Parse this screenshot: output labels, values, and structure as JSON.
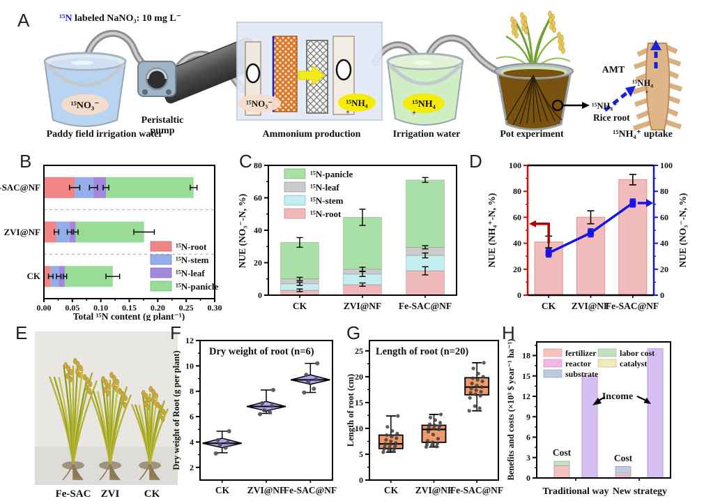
{
  "panel_labels": {
    "A": "A",
    "B": "B",
    "C": "C",
    "D": "D",
    "E": "E",
    "F": "F",
    "G": "G",
    "H": "H"
  },
  "panelA": {
    "header_isotope": "¹⁵N",
    "header_text": " labeled NaNO₃: 10 mg L⁻",
    "bucket1_label": "¹⁵NO₃⁻",
    "caption_bucket1": "Paddy field irrigation water",
    "caption_pump_line1": "Peristaltic",
    "caption_pump_line2": "pump",
    "cell_anode_label": "¹⁵NO₃⁻",
    "cell_cathode_label": "¹⁵NH₄",
    "cell_cathode_charge": "+",
    "caption_cell": "Ammonium production",
    "bucket2_label": "¹⁵NH₄",
    "bucket2_charge": "+",
    "caption_bucket2": "Irrigation water",
    "caption_pot": "Pot experiment",
    "root_amt_label": "AMT",
    "root_nh4_label": "¹⁵NH₄",
    "root_nh4_charge": "+",
    "root_nh4_in_label": "¹⁵NH₄⁺",
    "root_label": "Rice root",
    "caption_root": "¹⁵NH₄⁺ uptake"
  },
  "panelE": {
    "plant_labels": [
      "Fe-SAC",
      "ZVI",
      "CK"
    ]
  },
  "chart_data": [
    {
      "panel": "B",
      "type": "bar",
      "orientation": "horizontal",
      "stacked": true,
      "xlabel": "Total ¹⁵N content (g plant⁻¹)",
      "xlim": [
        0,
        0.3
      ],
      "xticks": [
        "0.00",
        "0.05",
        "0.10",
        "0.15",
        "0.20",
        "0.25",
        "0.30"
      ],
      "categories": [
        "CK",
        "ZVI@NF",
        "Fe-SAC@NF"
      ],
      "series": [
        {
          "name": "¹⁵N-root",
          "color": "#f18585",
          "values": [
            0.012,
            0.022,
            0.054
          ]
        },
        {
          "name": "¹⁵N-stem",
          "color": "#93aee9",
          "values": [
            0.014,
            0.023,
            0.033
          ]
        },
        {
          "name": "¹⁵N-leaf",
          "color": "#a389de",
          "values": [
            0.011,
            0.011,
            0.022
          ]
        },
        {
          "name": "¹⁵N-panicle",
          "color": "#98dc98",
          "values": [
            0.084,
            0.12,
            0.154
          ]
        }
      ],
      "errors": [
        [
          0.004,
          0.004,
          0.003,
          0.012
        ],
        [
          0.004,
          0.004,
          0.004,
          0.018
        ],
        [
          0.009,
          0.007,
          0.005,
          0.006
        ]
      ],
      "legend_position": "inside-right-bottom",
      "grid": "dashed-category-separators"
    },
    {
      "panel": "C",
      "type": "bar",
      "orientation": "vertical",
      "stacked": true,
      "ylabel": "NUE (NO₃⁻-N, %)",
      "ylim": [
        0,
        80
      ],
      "yticks": [
        0,
        20,
        40,
        60,
        80
      ],
      "categories": [
        "CK",
        "ZVI@NF",
        "Fe-SAC@NF"
      ],
      "series": [
        {
          "name": "¹⁵N-root",
          "color": "#efb9b9",
          "values": [
            3,
            6.5,
            15
          ]
        },
        {
          "name": "¹⁵N-stem",
          "color": "#c3edee",
          "values": [
            4,
            6.5,
            9.5
          ]
        },
        {
          "name": "¹⁵N-leaf",
          "color": "#cbcbcb",
          "values": [
            3,
            3,
            5
          ]
        },
        {
          "name": "¹⁵N-panicle",
          "color": "#a8e0a8",
          "values": [
            22.5,
            32,
            41.5
          ]
        }
      ],
      "errors": [
        [
          0.8,
          1,
          1,
          3
        ],
        [
          1,
          1.5,
          1.2,
          5
        ],
        [
          2.5,
          1.5,
          1,
          1.5
        ]
      ],
      "legend_position": "inside-top-left"
    },
    {
      "panel": "D",
      "type": "bar+line",
      "categories": [
        "CK",
        "ZVI@NF",
        "Fe-SAC@NF"
      ],
      "left_axis": {
        "label": "NUE (NH₄⁺-N, %)",
        "color": "#e60000",
        "lim": [
          0,
          100
        ],
        "ticks": [
          0,
          20,
          40,
          60,
          80,
          100
        ]
      },
      "right_axis": {
        "label": "NUE (NO₃⁻-N, %)",
        "color": "#1414e6",
        "lim": [
          0,
          100
        ],
        "ticks": [
          0,
          20,
          40,
          60,
          80,
          100
        ]
      },
      "bars": {
        "axis": "left",
        "color": "#f3bcbc",
        "values": [
          41,
          60,
          89
        ],
        "errors": [
          4.5,
          5,
          4
        ]
      },
      "line": {
        "axis": "right",
        "color": "#1414e6",
        "values": [
          32.5,
          48,
          71
        ],
        "errors": [
          3,
          3,
          3
        ]
      }
    },
    {
      "panel": "F",
      "type": "box",
      "style": "diamond",
      "title": "Dry weight of root (n=6)",
      "ylabel": "Dry weight of Root (g per plant)",
      "ylim": [
        1,
        12
      ],
      "yticks": [
        2,
        4,
        6,
        8,
        10,
        12
      ],
      "categories": [
        "CK",
        "ZVI@NF",
        "Fe-SAC@NF"
      ],
      "box_color": "#aba4ee",
      "boxes": [
        {
          "median": 3.9,
          "q1": 3.55,
          "q3": 4.3,
          "whisker_low": 3.15,
          "whisker_high": 4.85,
          "points": [
            3.1,
            3.55,
            3.8,
            3.95,
            4.15,
            4.85
          ]
        },
        {
          "median": 6.8,
          "q1": 6.45,
          "q3": 7.2,
          "whisker_low": 6.25,
          "whisker_high": 8.1,
          "points": [
            6.2,
            6.35,
            6.5,
            6.85,
            7.05,
            8.1
          ]
        },
        {
          "median": 8.9,
          "q1": 8.55,
          "q3": 9.3,
          "whisker_low": 7.9,
          "whisker_high": 10.2,
          "points": [
            7.9,
            8.2,
            8.75,
            8.95,
            9.3,
            10.2
          ]
        }
      ]
    },
    {
      "panel": "G",
      "type": "box",
      "style": "box",
      "title": "Length of root (n=20)",
      "ylabel": "Length of root (cm)",
      "ylim": [
        0,
        27
      ],
      "yticks": [
        0,
        5,
        10,
        15,
        20,
        25
      ],
      "categories": [
        "CK",
        "ZVI@NF",
        "Fe-SAC@NF"
      ],
      "box_color": "#f09a6c",
      "boxes": [
        {
          "median": 7.0,
          "q1": 6.1,
          "q3": 8.7,
          "whisker_low": 5.4,
          "whisker_high": 12.4,
          "points": [
            5.4,
            5.6,
            5.8,
            6.0,
            6.1,
            6.3,
            6.4,
            6.6,
            6.9,
            7.0,
            7.2,
            7.5,
            7.8,
            8.1,
            8.4,
            8.7,
            9.0,
            9.5,
            10.3,
            12.4
          ]
        },
        {
          "median": 9.8,
          "q1": 7.3,
          "q3": 10.6,
          "whisker_low": 6.4,
          "whisker_high": 12.7,
          "points": [
            6.4,
            6.5,
            6.7,
            6.9,
            7.1,
            7.3,
            7.6,
            8.0,
            8.8,
            9.4,
            9.8,
            10.0,
            10.2,
            10.4,
            10.6,
            10.8,
            11.1,
            11.6,
            12.1,
            12.7
          ]
        },
        {
          "median": 18.0,
          "q1": 16.5,
          "q3": 19.8,
          "whisker_low": 13.4,
          "whisker_high": 22.7,
          "points": [
            13.4,
            13.9,
            14.3,
            15.9,
            16.3,
            16.6,
            16.9,
            17.1,
            17.4,
            17.7,
            18.0,
            18.3,
            18.7,
            19.1,
            19.4,
            19.7,
            20.0,
            20.6,
            21.6,
            22.7
          ]
        }
      ]
    },
    {
      "panel": "H",
      "type": "bar",
      "orientation": "vertical",
      "ylabel": "Benefits and costs (×10³ $ year⁻¹ ha⁻¹)",
      "ylim": [
        0,
        20
      ],
      "yticks": [
        0,
        3,
        6,
        9,
        12,
        15,
        18
      ],
      "groups": [
        {
          "label": "Traditional way",
          "cost_segments": [
            {
              "name": "fertilizer",
              "value": 1.8
            },
            {
              "name": "labor cost",
              "value": 0.65
            }
          ],
          "income": 15.0
        },
        {
          "label": "New strategy",
          "cost_segments": [
            {
              "name": "reactor",
              "value": 0.45
            },
            {
              "name": "catalyst",
              "value": 0.25
            },
            {
              "name": "substrate",
              "value": 1.0
            }
          ],
          "income": 19.0
        }
      ],
      "legend": [
        {
          "name": "fertilizer",
          "color": "#f6c2bc"
        },
        {
          "name": "reactor",
          "color": "#f3b7e7"
        },
        {
          "name": "substrate",
          "color": "#bec9e2"
        },
        {
          "name": "labor cost",
          "color": "#c1e1bf"
        },
        {
          "name": "catalyst",
          "color": "#f0ecba"
        }
      ],
      "income_color": "#d6bff2",
      "cost_label": "Cost",
      "income_label": "Income"
    }
  ]
}
